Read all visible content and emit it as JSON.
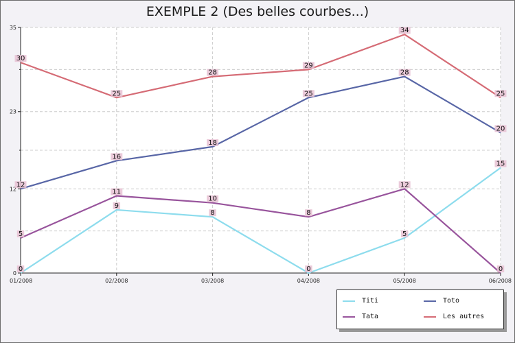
{
  "chart_data": {
    "type": "line",
    "title": "EXEMPLE 2 (Des belles courbes...)",
    "xlabel": "",
    "ylabel": "",
    "categories": [
      "01/2008",
      "02/2008",
      "03/2008",
      "04/2008",
      "05/2008",
      "06/2008"
    ],
    "y_ticks": [
      0,
      12,
      23,
      35
    ],
    "ylim": [
      0,
      35
    ],
    "grid": true,
    "legend_position": "bottom-right",
    "series": [
      {
        "name": "Titi",
        "color": "#8ddced",
        "values": [
          0,
          9,
          8,
          0,
          5,
          15
        ]
      },
      {
        "name": "Toto",
        "color": "#5866a6",
        "values": [
          12,
          16,
          18,
          25,
          28,
          20
        ]
      },
      {
        "name": "Tata",
        "color": "#98549c",
        "values": [
          5,
          11,
          10,
          8,
          12,
          0
        ]
      },
      {
        "name": "Les autres",
        "color": "#d56b75",
        "values": [
          30,
          25,
          28,
          29,
          34,
          25
        ]
      }
    ]
  }
}
